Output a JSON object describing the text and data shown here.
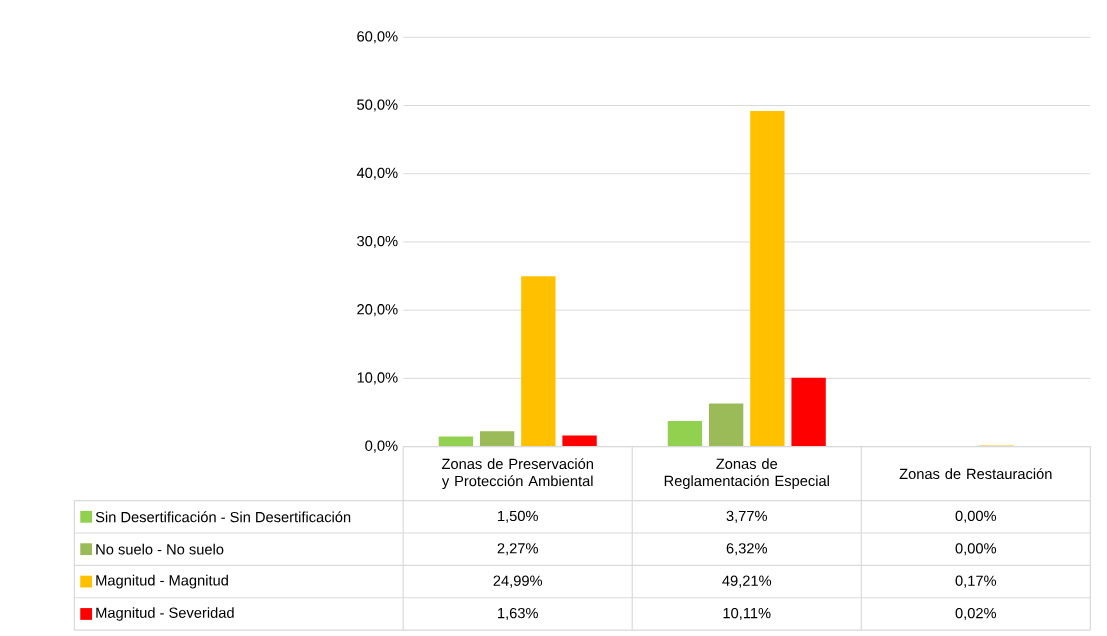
{
  "chart_data": {
    "type": "bar",
    "categories": [
      "Zonas de Preservación y Protección Ambiental",
      "Zonas de Reglamentación Especial",
      "Zonas de Restauración"
    ],
    "series": [
      {
        "name": "Sin Desertificación - Sin Desertificación",
        "color": "#92d050",
        "values": [
          1.5,
          3.77,
          0.0
        ],
        "value_labels": [
          "1,50%",
          "3,77%",
          "0,00%"
        ]
      },
      {
        "name": "No suelo - No suelo",
        "color": "#9bbb59",
        "values": [
          2.27,
          6.32,
          0.0
        ],
        "value_labels": [
          "2,27%",
          "6,32%",
          "0,00%"
        ]
      },
      {
        "name": "Magnitud - Magnitud",
        "color": "#ffc000",
        "values": [
          24.99,
          49.21,
          0.17
        ],
        "value_labels": [
          "24,99%",
          "49,21%",
          "0,17%"
        ]
      },
      {
        "name": "Magnitud - Severidad",
        "color": "#ff0000",
        "values": [
          1.63,
          10.11,
          0.02
        ],
        "value_labels": [
          "1,63%",
          "10,11%",
          "0,02%"
        ]
      }
    ],
    "ylim": [
      0,
      60
    ],
    "yticks": [
      {
        "value": 0,
        "label": "0,0%"
      },
      {
        "value": 10,
        "label": "10,0%"
      },
      {
        "value": 20,
        "label": "20,0%"
      },
      {
        "value": 30,
        "label": "30,0%"
      },
      {
        "value": 40,
        "label": "40,0%"
      },
      {
        "value": 50,
        "label": "50,0%"
      },
      {
        "value": 60,
        "label": "60,0%"
      }
    ],
    "grid": "y",
    "legend": "bottom"
  }
}
